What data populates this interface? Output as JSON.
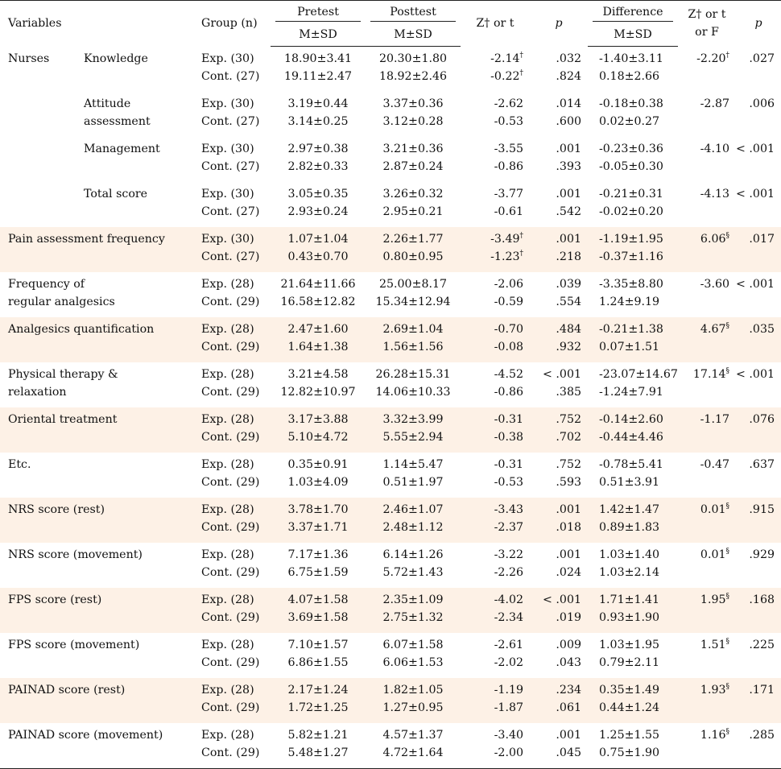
{
  "header": {
    "variables": "Variables",
    "group": "Group (n)",
    "pretest": "Pretest",
    "posttest": "Posttest",
    "msd": "M±SD",
    "z_or_t": "Z† or  t",
    "p": "p",
    "difference": "Difference",
    "z_or_t_or_f_line1": "Z† or t",
    "z_or_t_or_f_line2": "or F"
  },
  "sections": [
    {
      "category": "Nurses",
      "shaded": false,
      "rows": [
        {
          "sub": [
            "Knowledge"
          ],
          "groups": [
            "Exp. (30)",
            "Cont. (27)"
          ],
          "pre": [
            "18.90±3.41",
            "19.11±2.47"
          ],
          "post": [
            "20.30±1.80",
            "18.92±2.46"
          ],
          "z": [
            "-2.14",
            "-0.22"
          ],
          "zmark": [
            "†",
            "†"
          ],
          "p": [
            ".032",
            ".824"
          ],
          "diff": [
            "-1.40±3.11",
            "0.18±2.66"
          ],
          "z2": "-2.20",
          "z2mark": "†",
          "p2": ".027"
        },
        {
          "sub": [
            "Attitude",
            "assessment"
          ],
          "groups": [
            "Exp. (30)",
            "Cont. (27)"
          ],
          "pre": [
            "3.19±0.44",
            "3.14±0.25"
          ],
          "post": [
            "3.37±0.36",
            "3.12±0.28"
          ],
          "z": [
            "-2.62",
            "-0.53"
          ],
          "zmark": [
            "",
            ""
          ],
          "p": [
            ".014",
            ".600"
          ],
          "diff": [
            "-0.18±0.38",
            "0.02±0.27"
          ],
          "z2": "-2.87",
          "z2mark": "",
          "p2": ".006"
        },
        {
          "sub": [
            "Management"
          ],
          "groups": [
            "Exp. (30)",
            "Cont. (27)"
          ],
          "pre": [
            "2.97±0.38",
            "2.82±0.33"
          ],
          "post": [
            "3.21±0.36",
            "2.87±0.24"
          ],
          "z": [
            "-3.55",
            "-0.86"
          ],
          "zmark": [
            "",
            ""
          ],
          "p": [
            ".001",
            ".393"
          ],
          "diff": [
            "-0.23±0.36",
            "-0.05±0.30"
          ],
          "z2": "-4.10",
          "z2mark": "",
          "p2": "< .001"
        },
        {
          "sub": [
            "Total score"
          ],
          "groups": [
            "Exp. (30)",
            "Cont. (27)"
          ],
          "pre": [
            "3.05±0.35",
            "2.93±0.24"
          ],
          "post": [
            "3.26±0.32",
            "2.95±0.21"
          ],
          "z": [
            "-3.77",
            "-0.61"
          ],
          "zmark": [
            "",
            ""
          ],
          "p": [
            ".001",
            ".542"
          ],
          "diff": [
            "-0.21±0.31",
            "-0.02±0.20"
          ],
          "z2": "-4.13",
          "z2mark": "",
          "p2": "< .001"
        }
      ]
    },
    {
      "label": [
        "Pain assessment frequency"
      ],
      "shaded": true,
      "groups": [
        "Exp. (30)",
        "Cont. (27)"
      ],
      "pre": [
        "1.07±1.04",
        "0.43±0.70"
      ],
      "post": [
        "2.26±1.77",
        "0.80±0.95"
      ],
      "z": [
        "-3.49",
        "-1.23"
      ],
      "zmark": [
        "†",
        "†"
      ],
      "p": [
        ".001",
        ".218"
      ],
      "diff": [
        "-1.19±1.95",
        "-0.37±1.16"
      ],
      "z2": "6.06",
      "z2mark": "§",
      "p2": ".017"
    },
    {
      "label": [
        "Frequency of",
        "regular analgesics"
      ],
      "shaded": false,
      "groups": [
        "Exp. (28)",
        "Cont. (29)"
      ],
      "pre": [
        "21.64±11.66",
        "16.58±12.82"
      ],
      "post": [
        "25.00±8.17",
        "15.34±12.94"
      ],
      "z": [
        "-2.06",
        "-0.59"
      ],
      "zmark": [
        "",
        ""
      ],
      "p": [
        ".039",
        ".554"
      ],
      "diff": [
        "-3.35±8.80",
        "1.24±9.19"
      ],
      "z2": "-3.60",
      "z2mark": "",
      "p2": "< .001"
    },
    {
      "label": [
        "Analgesics quantification"
      ],
      "shaded": true,
      "groups": [
        "Exp. (28)",
        "Cont. (29)"
      ],
      "pre": [
        "2.47±1.60",
        "1.64±1.38"
      ],
      "post": [
        "2.69±1.04",
        "1.56±1.56"
      ],
      "z": [
        "-0.70",
        "-0.08"
      ],
      "zmark": [
        "",
        ""
      ],
      "p": [
        ".484",
        ".932"
      ],
      "diff": [
        "-0.21±1.38",
        "0.07±1.51"
      ],
      "z2": "4.67",
      "z2mark": "§",
      "p2": ".035"
    },
    {
      "label": [
        "Physical therapy &",
        "relaxation"
      ],
      "shaded": false,
      "groups": [
        "Exp. (28)",
        "Cont. (29)"
      ],
      "pre": [
        "3.21±4.58",
        "12.82±10.97"
      ],
      "post": [
        "26.28±15.31",
        "14.06±10.33"
      ],
      "z": [
        "-4.52",
        "-0.86"
      ],
      "zmark": [
        "",
        ""
      ],
      "p": [
        "< .001",
        ".385"
      ],
      "diff": [
        "-23.07±14.67",
        "-1.24±7.91"
      ],
      "z2": "17.14",
      "z2mark": "§",
      "p2": "< .001"
    },
    {
      "label": [
        "Oriental treatment"
      ],
      "shaded": true,
      "groups": [
        "Exp. (28)",
        "Cont. (29)"
      ],
      "pre": [
        "3.17±3.88",
        "5.10±4.72"
      ],
      "post": [
        "3.32±3.99",
        "5.55±2.94"
      ],
      "z": [
        "-0.31",
        "-0.38"
      ],
      "zmark": [
        "",
        ""
      ],
      "p": [
        ".752",
        ".702"
      ],
      "diff": [
        "-0.14±2.60",
        "-0.44±4.46"
      ],
      "z2": "-1.17",
      "z2mark": "",
      "p2": ".076"
    },
    {
      "label": [
        "Etc."
      ],
      "shaded": false,
      "groups": [
        "Exp. (28)",
        "Cont. (29)"
      ],
      "pre": [
        "0.35±0.91",
        "1.03±4.09"
      ],
      "post": [
        "1.14±5.47",
        "0.51±1.97"
      ],
      "z": [
        "-0.31",
        "-0.53"
      ],
      "zmark": [
        "",
        ""
      ],
      "p": [
        ".752",
        ".593"
      ],
      "diff": [
        "-0.78±5.41",
        "0.51±3.91"
      ],
      "z2": "-0.47",
      "z2mark": "",
      "p2": ".637"
    },
    {
      "label": [
        "NRS score  (rest)"
      ],
      "shaded": true,
      "groups": [
        "Exp. (28)",
        "Cont. (29)"
      ],
      "pre": [
        "3.78±1.70",
        "3.37±1.71"
      ],
      "post": [
        "2.46±1.07",
        "2.48±1.12"
      ],
      "z": [
        "-3.43",
        "-2.37"
      ],
      "zmark": [
        "",
        ""
      ],
      "p": [
        ".001",
        ".018"
      ],
      "diff": [
        "1.42±1.47",
        "0.89±1.83"
      ],
      "z2": "0.01",
      "z2mark": "§",
      "p2": ".915"
    },
    {
      "label": [
        "NRS score (movement)"
      ],
      "shaded": false,
      "groups": [
        "Exp. (28)",
        "Cont. (29)"
      ],
      "pre": [
        "7.17±1.36",
        "6.75±1.59"
      ],
      "post": [
        "6.14±1.26",
        "5.72±1.43"
      ],
      "z": [
        "-3.22",
        "-2.26"
      ],
      "zmark": [
        "",
        ""
      ],
      "p": [
        ".001",
        ".024"
      ],
      "diff": [
        "1.03±1.40",
        "1.03±2.14"
      ],
      "z2": "0.01",
      "z2mark": "§",
      "p2": ".929"
    },
    {
      "label": [
        "FPS score (rest)"
      ],
      "shaded": true,
      "groups": [
        "Exp. (28)",
        "Cont. (29)"
      ],
      "pre": [
        "4.07±1.58",
        "3.69±1.58"
      ],
      "post": [
        "2.35±1.09",
        "2.75±1.32"
      ],
      "z": [
        "-4.02",
        "-2.34"
      ],
      "zmark": [
        "",
        ""
      ],
      "p": [
        "< .001",
        ".019"
      ],
      "diff": [
        "1.71±1.41",
        "0.93±1.90"
      ],
      "z2": "1.95",
      "z2mark": "§",
      "p2": ".168"
    },
    {
      "label": [
        "FPS score (movement)"
      ],
      "shaded": false,
      "groups": [
        "Exp. (28)",
        "Cont. (29)"
      ],
      "pre": [
        "7.10±1.57",
        "6.86±1.55"
      ],
      "post": [
        "6.07±1.58",
        "6.06±1.53"
      ],
      "z": [
        "-2.61",
        "-2.02"
      ],
      "zmark": [
        "",
        ""
      ],
      "p": [
        ".009",
        ".043"
      ],
      "diff": [
        "1.03±1.95",
        "0.79±2.11"
      ],
      "z2": "1.51",
      "z2mark": "§",
      "p2": ".225"
    },
    {
      "label": [
        "PAINAD score (rest)"
      ],
      "shaded": true,
      "groups": [
        "Exp. (28)",
        "Cont. (29)"
      ],
      "pre": [
        "2.17±1.24",
        "1.72±1.25"
      ],
      "post": [
        "1.82±1.05",
        "1.27±0.95"
      ],
      "z": [
        "-1.19",
        "-1.87"
      ],
      "zmark": [
        "",
        ""
      ],
      "p": [
        ".234",
        ".061"
      ],
      "diff": [
        "0.35±1.49",
        "0.44±1.24"
      ],
      "z2": "1.93",
      "z2mark": "§",
      "p2": ".171"
    },
    {
      "label": [
        "PAINAD score (movement)"
      ],
      "shaded": false,
      "groups": [
        "Exp. (28)",
        "Cont. (29)"
      ],
      "pre": [
        "5.82±1.21",
        "5.48±1.27"
      ],
      "post": [
        "4.57±1.37",
        "4.72±1.64"
      ],
      "z": [
        "-3.40",
        "-2.00"
      ],
      "zmark": [
        "",
        ""
      ],
      "p": [
        ".001",
        ".045"
      ],
      "diff": [
        "1.25±1.55",
        "0.75±1.90"
      ],
      "z2": "1.16",
      "z2mark": "§",
      "p2": ".285"
    }
  ]
}
